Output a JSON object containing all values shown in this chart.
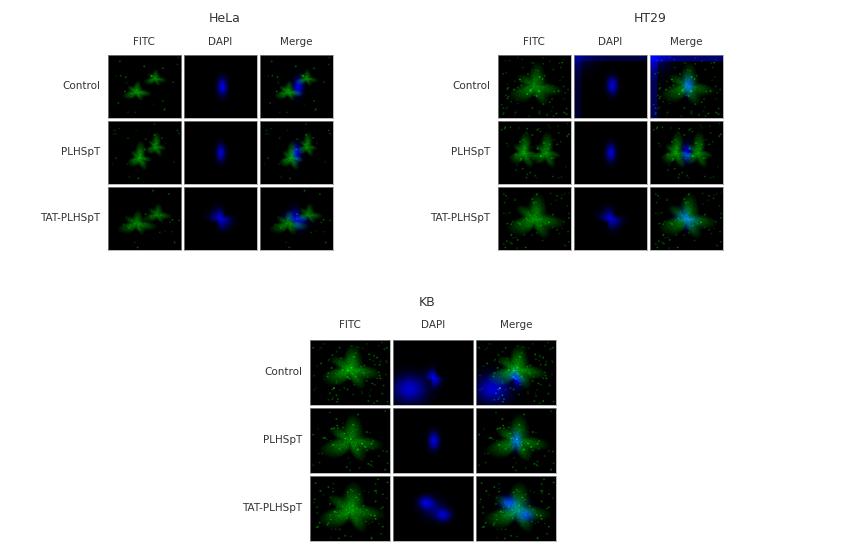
{
  "title_hela": "HeLa",
  "title_ht29": "HT29",
  "title_kb": "KB",
  "col_labels": [
    "FITC",
    "DAPI",
    "Merge"
  ],
  "row_labels": [
    "Control",
    "PLHSpT",
    "TAT-PLHSpT"
  ],
  "bg_color": "#ffffff",
  "label_color": "#333333",
  "title_fontsize": 9,
  "label_fontsize": 7.5,
  "seed": 42
}
